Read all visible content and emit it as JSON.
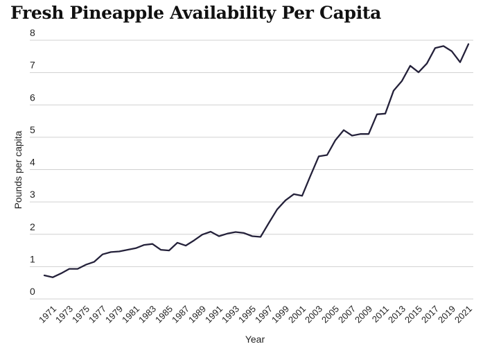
{
  "chart_data": {
    "type": "line",
    "title": "Fresh Pineapple Availability Per Capita",
    "xlabel": "Year",
    "ylabel": "Pounds per capita",
    "ylim": [
      0,
      8
    ],
    "y_ticks": [
      "0",
      "1",
      "2",
      "3",
      "4",
      "5",
      "6",
      "7",
      "8"
    ],
    "x_tick_labels": [
      "1971",
      "1973",
      "1975",
      "1977",
      "1979",
      "1981",
      "1983",
      "1985",
      "1987",
      "1989",
      "1991",
      "1993",
      "1995",
      "1997",
      "1999",
      "2001",
      "2003",
      "2005",
      "2007",
      "2009",
      "2011",
      "2013",
      "2015",
      "2017",
      "2019",
      "2021"
    ],
    "grid": "horizontal",
    "legend": "none",
    "line_color": "#24213a",
    "x": [
      1970,
      1971,
      1972,
      1973,
      1974,
      1975,
      1976,
      1977,
      1978,
      1979,
      1980,
      1981,
      1982,
      1983,
      1984,
      1985,
      1986,
      1987,
      1988,
      1989,
      1990,
      1991,
      1992,
      1993,
      1994,
      1995,
      1996,
      1997,
      1998,
      1999,
      2000,
      2001,
      2002,
      2003,
      2004,
      2005,
      2006,
      2007,
      2008,
      2009,
      2010,
      2011,
      2012,
      2013,
      2014,
      2015,
      2016,
      2017,
      2018,
      2019,
      2020,
      2021
    ],
    "series": [
      {
        "name": "Pounds per capita",
        "values": [
          0.73,
          0.67,
          0.79,
          0.93,
          0.93,
          1.06,
          1.15,
          1.38,
          1.45,
          1.47,
          1.52,
          1.57,
          1.67,
          1.7,
          1.52,
          1.5,
          1.74,
          1.65,
          1.81,
          1.99,
          2.08,
          1.94,
          2.02,
          2.07,
          2.04,
          1.94,
          1.92,
          2.35,
          2.77,
          3.05,
          3.24,
          3.19,
          3.81,
          4.41,
          4.45,
          4.91,
          5.22,
          5.05,
          5.1,
          5.1,
          5.71,
          5.73,
          6.44,
          6.74,
          7.21,
          7.01,
          7.28,
          7.76,
          7.82,
          7.66,
          7.32,
          7.88
        ]
      }
    ]
  }
}
